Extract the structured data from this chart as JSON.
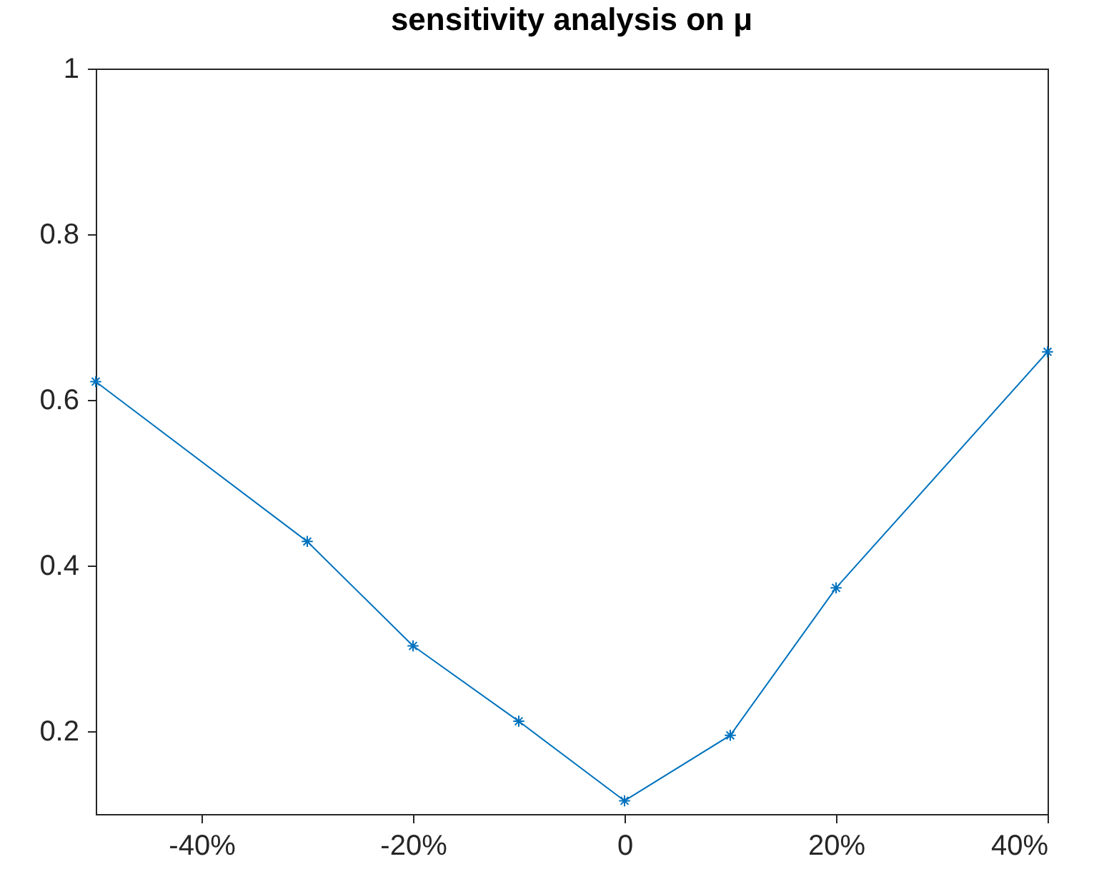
{
  "chart_data": {
    "type": "line",
    "title": "sensitivity analysis on μ",
    "x": [
      -50,
      -30,
      -20,
      -10,
      0,
      10,
      20,
      40
    ],
    "series": [
      {
        "color": "#0072bd",
        "values": [
          0.622,
          0.429,
          0.303,
          0.212,
          0.116,
          0.195,
          0.373,
          0.658
        ]
      }
    ],
    "xlim": [
      -50,
      40
    ],
    "xticks": [
      {
        "value": -40,
        "label": "-40%"
      },
      {
        "value": -20,
        "label": "-20%"
      },
      {
        "value": 0,
        "label": "0"
      },
      {
        "value": 20,
        "label": "20%"
      },
      {
        "value": 40,
        "label": "40%"
      }
    ],
    "ylim": [
      0.1,
      1
    ],
    "yticks": [
      0.2,
      0.4,
      0.6,
      0.8,
      1
    ],
    "grid": false,
    "legend": false,
    "marker": "cross",
    "line_style": "solid"
  }
}
